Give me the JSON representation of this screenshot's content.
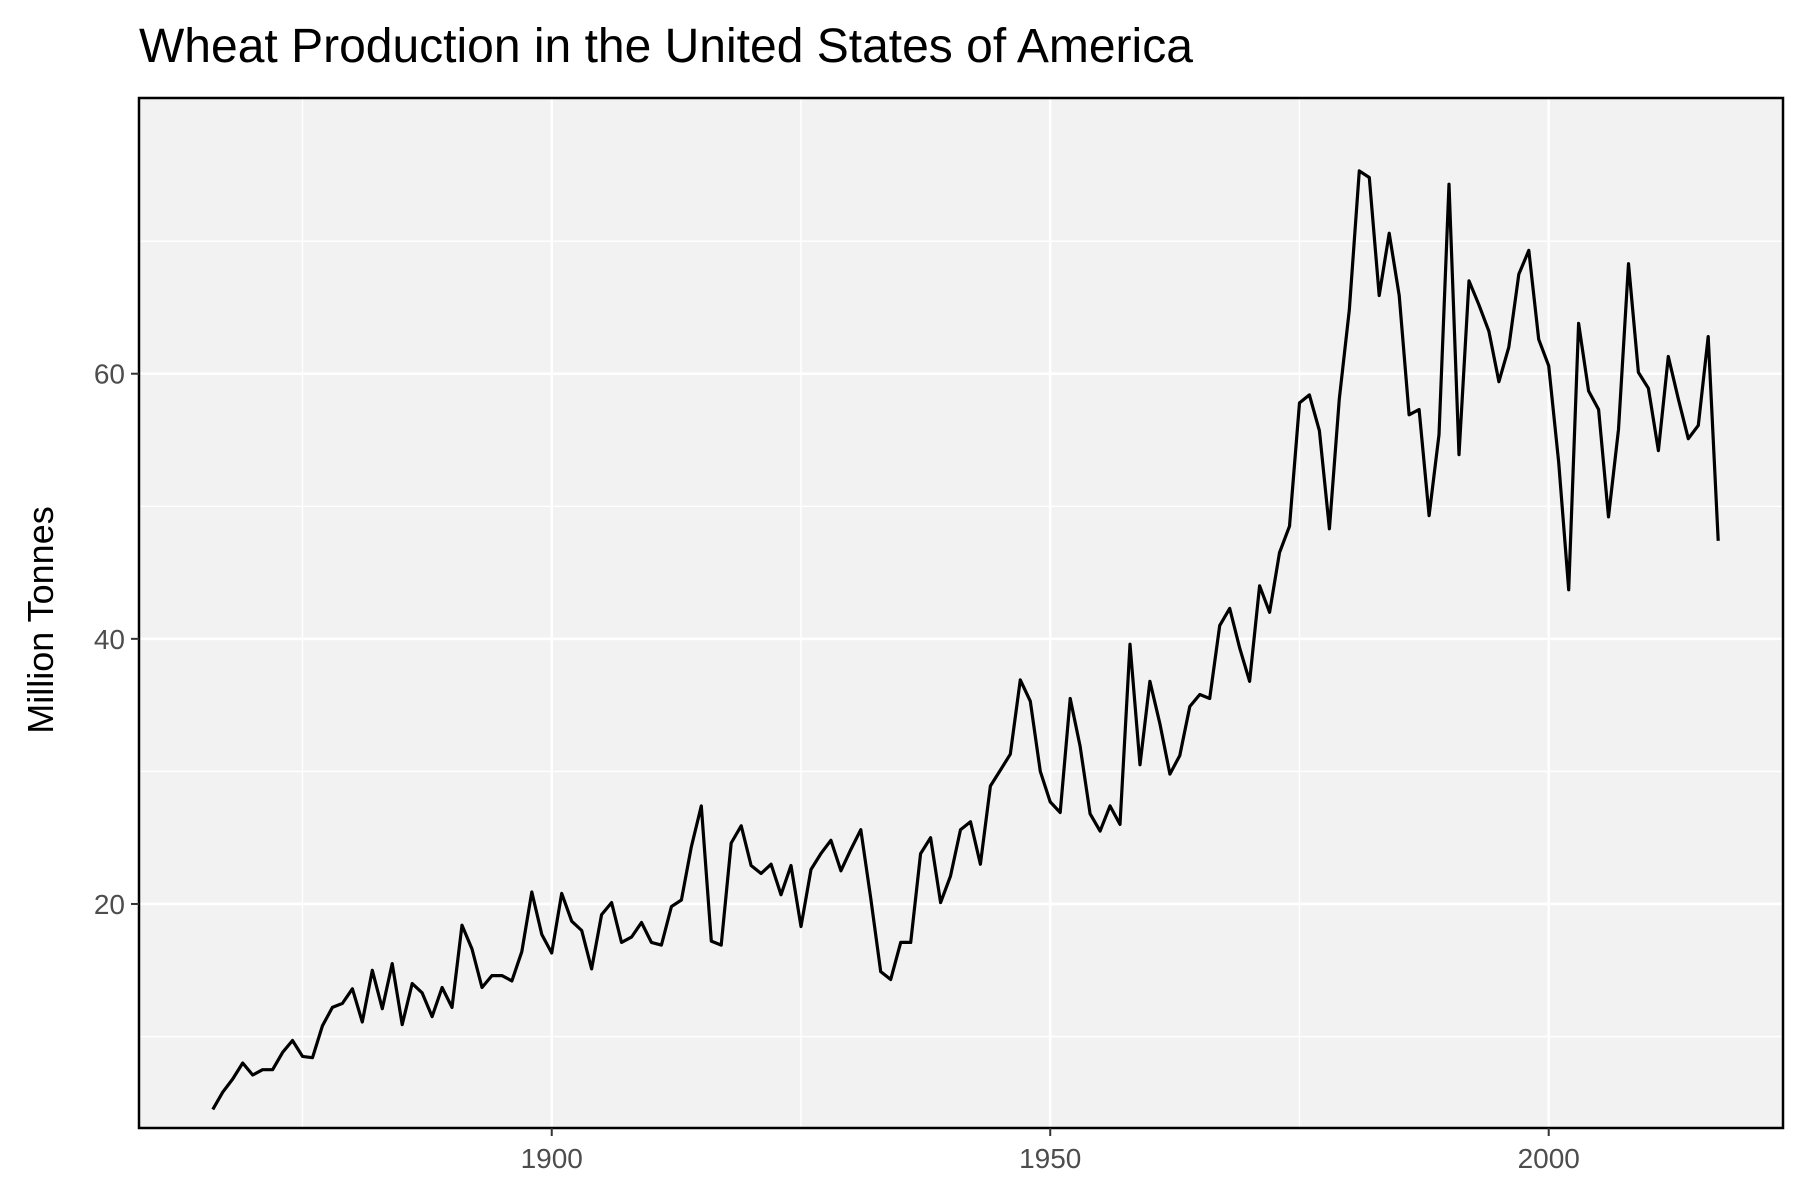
{
  "chart_data": {
    "type": "line",
    "title": "Wheat Production in the United States of America",
    "xlabel": "",
    "ylabel": "Million Tonnes",
    "xlim": [
      1858.6,
      2023.5
    ],
    "ylim": [
      3.1,
      80.8
    ],
    "x_ticks": [
      1900,
      1950,
      2000
    ],
    "x_tick_labels": [
      "1900",
      "1950",
      "2000"
    ],
    "y_ticks": [
      20,
      40,
      60
    ],
    "y_tick_labels": [
      "20",
      "40",
      "60"
    ],
    "grid": true,
    "legend": "none",
    "colors": {
      "panel": "#f2f2f2",
      "grid": "#ffffff",
      "line": "#000000",
      "tick_text": "#4d4d4d"
    },
    "series": [
      {
        "x": [
          1866,
          1867,
          1868,
          1869,
          1870,
          1871,
          1872,
          1873,
          1874,
          1875,
          1876,
          1877,
          1878,
          1879,
          1880,
          1881,
          1882,
          1883,
          1884,
          1885,
          1886,
          1887,
          1888,
          1889,
          1890,
          1891,
          1892,
          1893,
          1894,
          1895,
          1896,
          1897,
          1898,
          1899,
          1900,
          1901,
          1902,
          1903,
          1904,
          1905,
          1906,
          1907,
          1908,
          1909,
          1910,
          1911,
          1912,
          1913,
          1914,
          1915,
          1916,
          1917,
          1918,
          1919,
          1920,
          1921,
          1922,
          1923,
          1924,
          1925,
          1926,
          1927,
          1928,
          1929,
          1930,
          1931,
          1932,
          1933,
          1934,
          1935,
          1936,
          1937,
          1938,
          1939,
          1940,
          1941,
          1942,
          1943,
          1944,
          1945,
          1946,
          1947,
          1948,
          1949,
          1950,
          1951,
          1952,
          1953,
          1954,
          1955,
          1956,
          1957,
          1958,
          1959,
          1960,
          1961,
          1962,
          1963,
          1964,
          1965,
          1966,
          1967,
          1968,
          1969,
          1970,
          1971,
          1972,
          1973,
          1974,
          1975,
          1976,
          1977,
          1978,
          1979,
          1980,
          1981,
          1982,
          1983,
          1984,
          1985,
          1986,
          1987,
          1988,
          1989,
          1990,
          1991,
          1992,
          1993,
          1994,
          1995,
          1996,
          1997,
          1998,
          1999,
          2000,
          2001,
          2002,
          2003,
          2004,
          2005,
          2006,
          2007,
          2008,
          2009,
          2010,
          2011,
          2012,
          2013,
          2014,
          2015,
          2016,
          2017
        ],
        "values": [
          4.5,
          5.8,
          6.8,
          8.0,
          7.1,
          7.5,
          7.5,
          8.8,
          9.7,
          8.5,
          8.4,
          10.8,
          12.2,
          12.5,
          13.6,
          11.1,
          15.0,
          12.1,
          15.5,
          10.9,
          14.0,
          13.3,
          11.5,
          13.7,
          12.2,
          18.4,
          16.6,
          13.7,
          14.6,
          14.6,
          14.2,
          16.4,
          20.9,
          17.7,
          16.3,
          20.8,
          18.7,
          18.0,
          15.1,
          19.2,
          20.1,
          17.1,
          17.5,
          18.6,
          17.1,
          16.9,
          19.8,
          20.3,
          24.3,
          27.4,
          17.2,
          16.9,
          24.6,
          25.9,
          22.9,
          22.3,
          23.0,
          20.7,
          22.9,
          18.3,
          22.6,
          23.8,
          24.8,
          22.5,
          24.1,
          25.6,
          20.4,
          14.9,
          14.3,
          17.1,
          17.1,
          23.8,
          25.0,
          20.1,
          22.1,
          25.6,
          26.2,
          23.0,
          28.9,
          30.1,
          31.3,
          36.9,
          35.3,
          30.0,
          27.7,
          26.9,
          35.5,
          31.9,
          26.8,
          25.5,
          27.4,
          26.0,
          39.6,
          30.5,
          36.8,
          33.6,
          29.8,
          31.2,
          34.9,
          35.8,
          35.5,
          41.0,
          42.3,
          39.3,
          36.8,
          44.0,
          42.0,
          46.5,
          48.5,
          57.8,
          58.4,
          55.7,
          48.3,
          58.1,
          64.8,
          75.3,
          74.8,
          65.9,
          70.6,
          65.9,
          56.9,
          57.3,
          49.3,
          55.4,
          74.3,
          53.9,
          67.0,
          65.2,
          63.2,
          59.4,
          62.0,
          67.5,
          69.3,
          62.6,
          60.6,
          53.3,
          43.7,
          63.8,
          58.7,
          57.3,
          49.2,
          55.8,
          68.3,
          60.1,
          58.9,
          54.2,
          61.3,
          58.1,
          55.1,
          56.1,
          62.8,
          47.4
        ]
      }
    ]
  }
}
